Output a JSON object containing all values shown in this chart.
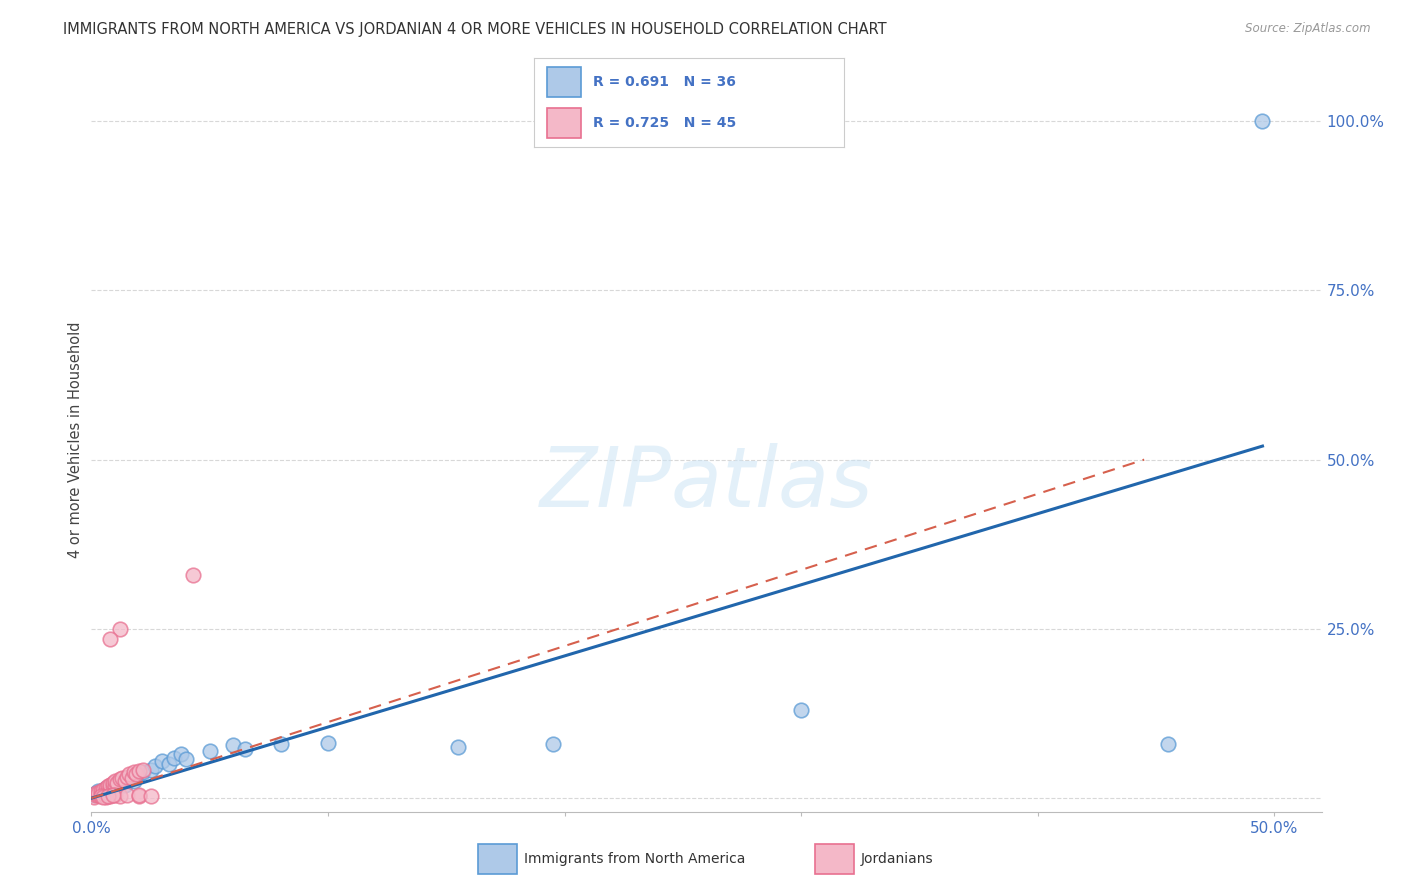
{
  "title": "IMMIGRANTS FROM NORTH AMERICA VS JORDANIAN 4 OR MORE VEHICLES IN HOUSEHOLD CORRELATION CHART",
  "source": "Source: ZipAtlas.com",
  "tick_color": "#4472c4",
  "ylabel": "4 or more Vehicles in Household",
  "xlim": [
    0.0,
    0.52
  ],
  "ylim": [
    -0.02,
    1.08
  ],
  "watermark": "ZIPatlas",
  "blue_color_face": "#aec9e8",
  "blue_color_edge": "#5b9bd5",
  "pink_color_face": "#f4b8c8",
  "pink_color_edge": "#e87090",
  "blue_line_color": "#2166ac",
  "pink_line_color": "#d6604d",
  "grid_color": "#d8d8d8",
  "background_color": "#ffffff",
  "blue_scatter": [
    [
      0.001,
      0.005
    ],
    [
      0.002,
      0.008
    ],
    [
      0.003,
      0.01
    ],
    [
      0.004,
      0.007
    ],
    [
      0.005,
      0.012
    ],
    [
      0.006,
      0.015
    ],
    [
      0.007,
      0.013
    ],
    [
      0.008,
      0.018
    ],
    [
      0.009,
      0.016
    ],
    [
      0.01,
      0.02
    ],
    [
      0.011,
      0.018
    ],
    [
      0.012,
      0.022
    ],
    [
      0.013,
      0.025
    ],
    [
      0.014,
      0.02
    ],
    [
      0.015,
      0.028
    ],
    [
      0.016,
      0.03
    ],
    [
      0.018,
      0.025
    ],
    [
      0.019,
      0.032
    ],
    [
      0.02,
      0.035
    ],
    [
      0.022,
      0.038
    ],
    [
      0.025,
      0.042
    ],
    [
      0.027,
      0.048
    ],
    [
      0.03,
      0.055
    ],
    [
      0.033,
      0.05
    ],
    [
      0.035,
      0.06
    ],
    [
      0.038,
      0.065
    ],
    [
      0.04,
      0.058
    ],
    [
      0.05,
      0.07
    ],
    [
      0.06,
      0.078
    ],
    [
      0.065,
      0.072
    ],
    [
      0.08,
      0.08
    ],
    [
      0.1,
      0.082
    ],
    [
      0.155,
      0.075
    ],
    [
      0.195,
      0.08
    ],
    [
      0.3,
      0.13
    ],
    [
      0.455,
      0.08
    ],
    [
      0.495,
      1.0
    ]
  ],
  "pink_scatter": [
    [
      0.001,
      0.002
    ],
    [
      0.002,
      0.004
    ],
    [
      0.002,
      0.007
    ],
    [
      0.003,
      0.005
    ],
    [
      0.003,
      0.008
    ],
    [
      0.004,
      0.006
    ],
    [
      0.004,
      0.01
    ],
    [
      0.005,
      0.008
    ],
    [
      0.005,
      0.012
    ],
    [
      0.006,
      0.01
    ],
    [
      0.006,
      0.015
    ],
    [
      0.007,
      0.012
    ],
    [
      0.007,
      0.018
    ],
    [
      0.008,
      0.015
    ],
    [
      0.008,
      0.02
    ],
    [
      0.009,
      0.018
    ],
    [
      0.009,
      0.022
    ],
    [
      0.01,
      0.02
    ],
    [
      0.01,
      0.025
    ],
    [
      0.011,
      0.022
    ],
    [
      0.012,
      0.028
    ],
    [
      0.013,
      0.03
    ],
    [
      0.014,
      0.025
    ],
    [
      0.015,
      0.032
    ],
    [
      0.016,
      0.035
    ],
    [
      0.017,
      0.03
    ],
    [
      0.018,
      0.038
    ],
    [
      0.019,
      0.035
    ],
    [
      0.02,
      0.04
    ],
    [
      0.022,
      0.042
    ],
    [
      0.004,
      0.003
    ],
    [
      0.006,
      0.002
    ],
    [
      0.008,
      0.003
    ],
    [
      0.01,
      0.004
    ],
    [
      0.012,
      0.003
    ],
    [
      0.015,
      0.004
    ],
    [
      0.005,
      0.002
    ],
    [
      0.007,
      0.003
    ],
    [
      0.009,
      0.004
    ],
    [
      0.02,
      0.003
    ],
    [
      0.012,
      0.25
    ],
    [
      0.043,
      0.33
    ],
    [
      0.008,
      0.235
    ],
    [
      0.02,
      0.005
    ],
    [
      0.025,
      0.003
    ]
  ],
  "blue_line_x": [
    0.0,
    0.495
  ],
  "blue_line_y": [
    0.0,
    0.52
  ],
  "pink_line_x": [
    0.0,
    0.445
  ],
  "pink_line_y": [
    0.0,
    0.5
  ]
}
